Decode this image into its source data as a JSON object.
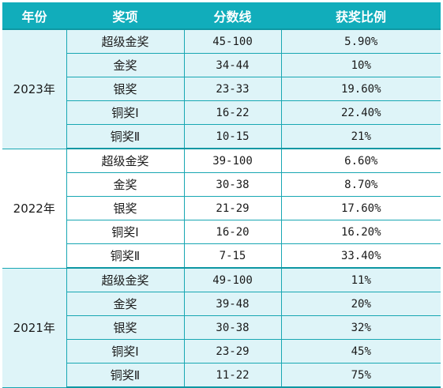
{
  "header": {
    "year": "年份",
    "award": "奖项",
    "score": "分数线",
    "ratio": "获奖比例"
  },
  "groups": [
    {
      "year": "2023年",
      "rows": [
        {
          "award": "超级金奖",
          "score": "45-100",
          "ratio": "5.90%"
        },
        {
          "award": "金奖",
          "score": "34-44",
          "ratio": "10%"
        },
        {
          "award": "银奖",
          "score": "23-33",
          "ratio": "19.60%"
        },
        {
          "award": "铜奖Ⅰ",
          "score": "16-22",
          "ratio": "22.40%"
        },
        {
          "award": "铜奖Ⅱ",
          "score": "10-15",
          "ratio": "21%"
        }
      ]
    },
    {
      "year": "2022年",
      "rows": [
        {
          "award": "超级金奖",
          "score": "39-100",
          "ratio": "6.60%"
        },
        {
          "award": "金奖",
          "score": "30-38",
          "ratio": "8.70%"
        },
        {
          "award": "银奖",
          "score": "21-29",
          "ratio": "17.60%"
        },
        {
          "award": "铜奖Ⅰ",
          "score": "16-20",
          "ratio": "16.20%"
        },
        {
          "award": "铜奖Ⅱ",
          "score": "7-15",
          "ratio": "33.40%"
        }
      ]
    },
    {
      "year": "2021年",
      "rows": [
        {
          "award": "超级金奖",
          "score": "49-100",
          "ratio": "11%"
        },
        {
          "award": "金奖",
          "score": "39-48",
          "ratio": "20%"
        },
        {
          "award": "银奖",
          "score": "30-38",
          "ratio": "32%"
        },
        {
          "award": "铜奖Ⅰ",
          "score": "23-29",
          "ratio": "45%"
        },
        {
          "award": "铜奖Ⅱ",
          "score": "11-22",
          "ratio": "75%"
        }
      ]
    }
  ],
  "colors": {
    "header_bg": "#11adbb",
    "header_text": "#ffffff",
    "tint_row": "#def4f8",
    "plain_row": "#ffffff",
    "border": "#18a7b3"
  }
}
